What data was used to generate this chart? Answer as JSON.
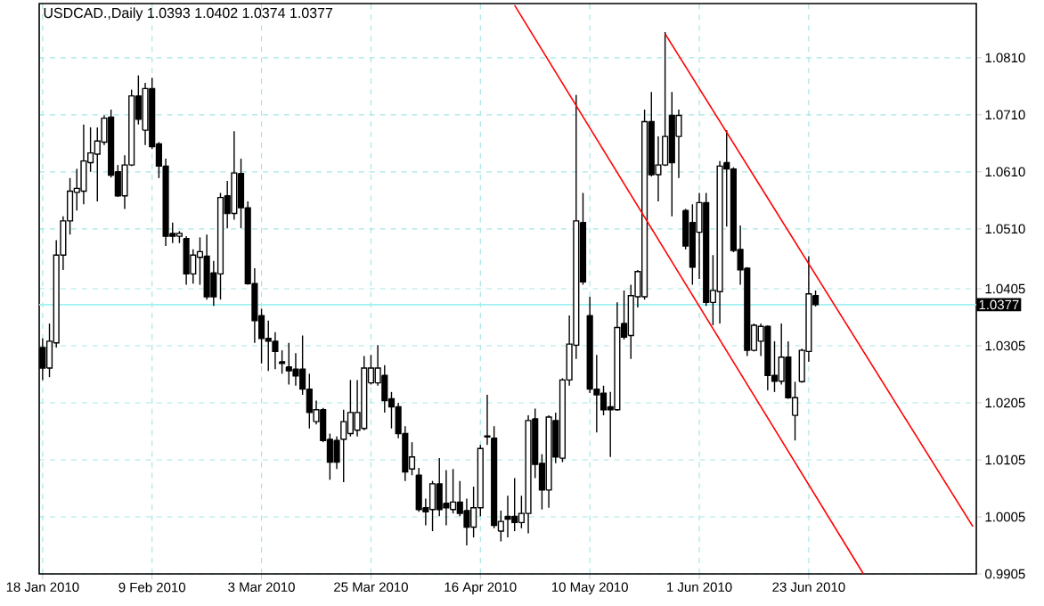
{
  "chart_data": {
    "type": "candlestick",
    "title": "USDCAD.,Daily 1.0393 1.0402 1.0374 1.0377",
    "categories": [
      "18 Jan 2010",
      null,
      null,
      null,
      null,
      null,
      null,
      null,
      null,
      null,
      null,
      null,
      null,
      null,
      null,
      null,
      "9 Feb 2010",
      null,
      null,
      null,
      null,
      null,
      null,
      null,
      null,
      null,
      null,
      null,
      null,
      null,
      null,
      null,
      "3 Mar 2010",
      null,
      null,
      null,
      null,
      null,
      null,
      null,
      null,
      null,
      null,
      null,
      null,
      null,
      null,
      null,
      "25 Mar 2010",
      null,
      null,
      null,
      null,
      null,
      null,
      null,
      null,
      null,
      null,
      null,
      null,
      null,
      null,
      null,
      "16 Apr 2010",
      null,
      null,
      null,
      null,
      null,
      null,
      null,
      null,
      null,
      null,
      null,
      null,
      null,
      null,
      null,
      "10 May 2010",
      null,
      null,
      null,
      null,
      null,
      null,
      null,
      null,
      null,
      null,
      null,
      null,
      null,
      null,
      null,
      "1 Jun 2010",
      null,
      null,
      null,
      null,
      null,
      null,
      null,
      null,
      null,
      null,
      null,
      null,
      null,
      null,
      null,
      "23 Jun 2010",
      null,
      null,
      null,
      null,
      null,
      null,
      null,
      null,
      null,
      null,
      null,
      null,
      null,
      null,
      null,
      null,
      null,
      null,
      null,
      null,
      null,
      null,
      null,
      null
    ],
    "color": "#000000",
    "ohlc": [
      [
        1.0302,
        1.0318,
        1.0245,
        1.0266
      ],
      [
        1.0266,
        1.0344,
        1.025,
        1.0313
      ],
      [
        1.031,
        1.049,
        1.0302,
        1.0464
      ],
      [
        1.0464,
        1.0532,
        1.0438,
        1.0524
      ],
      [
        1.0524,
        1.0599,
        1.05,
        1.0576
      ],
      [
        1.0574,
        1.0615,
        1.0542,
        1.0581
      ],
      [
        1.0576,
        1.0693,
        1.0553,
        1.0629
      ],
      [
        1.0626,
        1.0688,
        1.061,
        1.0643
      ],
      [
        1.0641,
        1.0688,
        1.0558,
        1.0664
      ],
      [
        1.0662,
        1.0709,
        1.0657,
        1.0704
      ],
      [
        1.0706,
        1.0719,
        1.06,
        1.0604
      ],
      [
        1.061,
        1.0622,
        1.0566,
        1.0568
      ],
      [
        1.0568,
        1.0639,
        1.0545,
        1.0622
      ],
      [
        1.0622,
        1.0754,
        1.062,
        1.0743
      ],
      [
        1.0743,
        1.0779,
        1.0693,
        1.0702
      ],
      [
        1.0683,
        1.0766,
        1.0657,
        1.0756
      ],
      [
        1.0756,
        1.0775,
        1.065,
        1.0654
      ],
      [
        1.0659,
        1.0662,
        1.0599,
        1.062
      ],
      [
        1.062,
        1.0633,
        1.048,
        1.0497
      ],
      [
        1.0502,
        1.0521,
        1.0485,
        1.0497
      ],
      [
        1.0497,
        1.0506,
        1.0485,
        1.0502
      ],
      [
        1.0493,
        1.0497,
        1.0412,
        1.0431
      ],
      [
        1.0431,
        1.0474,
        1.0414,
        1.0464
      ],
      [
        1.046,
        1.0495,
        1.0412,
        1.047
      ],
      [
        1.0462,
        1.05,
        1.0386,
        1.0391
      ],
      [
        1.0433,
        1.0454,
        1.0375,
        1.0391
      ],
      [
        1.0431,
        1.0573,
        1.0386,
        1.0565
      ],
      [
        1.0568,
        1.0594,
        1.0511,
        1.0537
      ],
      [
        1.0537,
        1.0681,
        1.0526,
        1.0608
      ],
      [
        1.0607,
        1.0633,
        1.0511,
        1.0547
      ],
      [
        1.0547,
        1.0558,
        1.0412,
        1.0414
      ],
      [
        1.0414,
        1.0441,
        1.031,
        1.0349
      ],
      [
        1.0358,
        1.037,
        1.0274,
        1.0318
      ],
      [
        1.0318,
        1.0349,
        1.0261,
        1.0313
      ],
      [
        1.0313,
        1.0329,
        1.0264,
        1.0295
      ],
      [
        1.0277,
        1.0297,
        1.0256,
        1.0274
      ],
      [
        1.0268,
        1.031,
        1.0237,
        1.0261
      ],
      [
        1.0264,
        1.0292,
        1.0235,
        1.0252
      ],
      [
        1.0264,
        1.0323,
        1.0219,
        1.0229
      ],
      [
        1.0229,
        1.0256,
        1.016,
        1.0188
      ],
      [
        1.0172,
        1.0209,
        1.0167,
        1.0193
      ],
      [
        1.0193,
        1.0196,
        1.0136,
        1.0139
      ],
      [
        1.0141,
        1.0151,
        1.007,
        1.0101
      ],
      [
        1.0139,
        1.0146,
        1.0089,
        1.0101
      ],
      [
        1.0141,
        1.0193,
        1.0066,
        1.0172
      ],
      [
        1.0151,
        1.0245,
        1.0146,
        1.0188
      ],
      [
        1.0157,
        1.0245,
        1.0146,
        1.0188
      ],
      [
        1.016,
        1.0287,
        1.0157,
        1.0266
      ],
      [
        1.024,
        1.0289,
        1.0237,
        1.0266
      ],
      [
        1.024,
        1.0306,
        1.0235,
        1.0266
      ],
      [
        1.0253,
        1.0271,
        1.0188,
        1.0209
      ],
      [
        1.0212,
        1.0224,
        1.016,
        1.0198
      ],
      [
        1.0198,
        1.0205,
        1.0143,
        1.0151
      ],
      [
        1.0151,
        1.0164,
        1.0068,
        1.0084
      ],
      [
        1.0089,
        1.0136,
        1.0078,
        1.011
      ],
      [
        1.0078,
        1.0091,
        1.0014,
        1.0018
      ],
      [
        1.0021,
        1.0037,
        0.999,
        1.0014
      ],
      [
        1.0018,
        1.0068,
        0.998,
        1.0063
      ],
      [
        1.0063,
        1.0108,
        1.0006,
        1.0018
      ],
      [
        1.0029,
        1.0087,
        0.999,
        1.0021
      ],
      [
        1.0018,
        1.0089,
        1.0011,
        1.0031
      ],
      [
        1.0031,
        1.0068,
        1.0006,
        1.0011
      ],
      [
        1.0016,
        1.0037,
        0.9955,
        0.9987
      ],
      [
        0.9987,
        1.0058,
        0.9969,
        1.0021
      ],
      [
        1.0021,
        1.0131,
        1.0006,
        1.0125
      ],
      [
        1.0145,
        1.0219,
        1.0131,
        1.0147
      ],
      [
        1.0143,
        1.0164,
        0.9985,
        0.999
      ],
      [
        0.998,
        1.0016,
        0.9962,
        0.9997
      ],
      [
        1.0006,
        1.0042,
        0.9969,
        1.0001
      ],
      [
        1.0006,
        1.0073,
        0.998,
        0.9995
      ],
      [
        0.9995,
        1.0042,
        0.9985,
        1.0011
      ],
      [
        1.0011,
        1.0183,
        0.9976,
        1.0174
      ],
      [
        1.0177,
        1.0195,
        1.0073,
        1.0097
      ],
      [
        1.0099,
        1.0115,
        1.0018,
        1.0052
      ],
      [
        1.0052,
        1.0183,
        1.0021,
        1.018
      ],
      [
        1.0174,
        1.0188,
        1.0099,
        1.011
      ],
      [
        1.0108,
        1.0248,
        1.0101,
        1.0245
      ],
      [
        1.0245,
        1.0358,
        1.0235,
        1.0308
      ],
      [
        1.0306,
        1.0745,
        1.0282,
        1.0524
      ],
      [
        1.0521,
        1.0573,
        1.0412,
        1.0417
      ],
      [
        1.0358,
        1.0391,
        1.0222,
        1.0229
      ],
      [
        1.0229,
        1.0289,
        1.0153,
        1.0219
      ],
      [
        1.0222,
        1.0235,
        1.0183,
        1.0193
      ],
      [
        1.0198,
        1.0224,
        1.011,
        1.0193
      ],
      [
        1.0193,
        1.0381,
        1.0191,
        1.0337
      ],
      [
        1.0344,
        1.0402,
        1.0316,
        1.032
      ],
      [
        1.0323,
        1.0412,
        1.0282,
        1.0393
      ],
      [
        1.0391,
        1.0438,
        1.0372,
        1.0435
      ],
      [
        1.0391,
        1.0719,
        1.0386,
        1.0698
      ],
      [
        1.0698,
        1.075,
        1.0602,
        1.0605
      ],
      [
        1.0605,
        1.0672,
        1.0558,
        1.0622
      ],
      [
        1.0622,
        1.0855,
        1.062,
        1.0672
      ],
      [
        1.0709,
        1.075,
        1.0532,
        1.0626
      ],
      [
        1.0672,
        1.0719,
        1.0599,
        1.0709
      ],
      [
        1.0542,
        1.0545,
        1.0474,
        1.048
      ],
      [
        1.0521,
        1.0553,
        1.0412,
        1.0443
      ],
      [
        1.0504,
        1.0573,
        1.0422,
        1.0556
      ],
      [
        1.0556,
        1.0573,
        1.0375,
        1.0381
      ],
      [
        1.0381,
        1.0464,
        1.0341,
        1.0402
      ],
      [
        1.04,
        1.0629,
        1.0344,
        1.062
      ],
      [
        1.0626,
        1.0683,
        1.0514,
        1.0615
      ],
      [
        1.0615,
        1.0618,
        1.0469,
        1.0472
      ],
      [
        1.0474,
        1.0516,
        1.0412,
        1.0438
      ],
      [
        1.0441,
        1.0443,
        1.0287,
        1.0297
      ],
      [
        1.0297,
        1.0344,
        1.0295,
        1.0341
      ],
      [
        1.0313,
        1.0344,
        1.0287,
        1.0339
      ],
      [
        1.0339,
        1.0341,
        1.0227,
        1.0253
      ],
      [
        1.0253,
        1.0313,
        1.0224,
        1.0243
      ],
      [
        1.0243,
        1.0344,
        1.0237,
        1.0285
      ],
      [
        1.0285,
        1.0313,
        1.0212,
        1.0214
      ],
      [
        1.0183,
        1.0242,
        1.0139,
        1.0214
      ],
      [
        1.0242,
        1.03,
        1.024,
        1.0297
      ],
      [
        1.0295,
        1.0462,
        1.0277,
        1.0396
      ],
      [
        1.0393,
        1.0402,
        1.0374,
        1.0377
      ],
      null,
      null,
      null,
      null,
      null,
      null,
      null,
      null,
      null,
      null,
      null,
      null,
      null,
      null,
      null,
      null,
      null,
      null,
      null,
      null,
      null,
      null,
      null
    ],
    "series": [
      {
        "type": "line",
        "color": "#ff0000",
        "values": [
          null,
          null,
          null,
          null,
          null,
          null,
          null,
          null,
          null,
          null,
          null,
          null,
          null,
          null,
          null,
          null,
          null,
          null,
          null,
          null,
          null,
          null,
          null,
          null,
          null,
          null,
          null,
          null,
          null,
          null,
          null,
          null,
          null,
          null,
          null,
          null,
          null,
          null,
          null,
          null,
          null,
          null,
          null,
          null,
          null,
          null,
          null,
          null,
          null,
          null,
          null,
          null,
          null,
          null,
          null,
          null,
          null,
          null,
          null,
          null,
          null,
          null,
          null,
          null,
          null,
          null,
          null,
          null,
          null,
          null,
          null,
          null,
          null,
          null,
          null,
          null,
          null,
          null,
          null,
          null,
          null,
          null,
          null,
          null,
          null,
          null,
          null,
          null,
          null,
          null,
          null,
          1.0852,
          null,
          null,
          null,
          null,
          null,
          null,
          null,
          null,
          null,
          null,
          null,
          null,
          null,
          null,
          null,
          null,
          null,
          null,
          null,
          null,
          null,
          null,
          null,
          null,
          null,
          null,
          null,
          null,
          null,
          null,
          null,
          null,
          null,
          null,
          null,
          null,
          null,
          null,
          null,
          null,
          null,
          null,
          null,
          null,
          0.9988
        ]
      },
      {
        "type": "line",
        "color": "#ff0000",
        "values": [
          null,
          null,
          null,
          null,
          null,
          null,
          null,
          null,
          null,
          null,
          null,
          null,
          null,
          null,
          null,
          null,
          null,
          null,
          null,
          null,
          null,
          null,
          null,
          null,
          null,
          null,
          null,
          null,
          null,
          null,
          null,
          null,
          null,
          null,
          null,
          null,
          null,
          null,
          null,
          null,
          null,
          null,
          null,
          null,
          null,
          null,
          null,
          null,
          null,
          null,
          null,
          null,
          null,
          null,
          null,
          null,
          null,
          null,
          null,
          null,
          null,
          null,
          null,
          null,
          null,
          null,
          null,
          null,
          null,
          1.0902,
          null,
          null,
          null,
          null,
          null,
          null,
          null,
          null,
          null,
          null,
          null,
          null,
          null,
          null,
          null,
          null,
          null,
          null,
          null,
          null,
          null,
          null,
          null,
          null,
          null,
          null,
          null,
          null,
          null,
          null,
          null,
          null,
          null,
          null,
          null,
          null,
          null,
          null,
          null,
          null,
          null,
          null,
          null,
          null,
          null,
          null,
          null,
          null,
          null,
          null,
          0.9905,
          null,
          null,
          null,
          null,
          null,
          null,
          null,
          null,
          null,
          null,
          null,
          null,
          null,
          null,
          null,
          null
        ]
      }
    ],
    "ylim": [
      0.9905,
      1.0905
    ],
    "yticks": [
      0.9905,
      1.0005,
      1.0105,
      1.0205,
      1.0305,
      1.0405,
      {
        "value": 1.051,
        "label": "1.0510"
      },
      {
        "value": 1.061,
        "label": "1.0610"
      },
      {
        "value": 1.071,
        "label": "1.0710"
      },
      {
        "value": 1.081,
        "label": "1.0810"
      }
    ],
    "ref_lines": [
      {
        "axis": "y",
        "value": 1.0377,
        "label": "1.0377",
        "color": "#a0f0f0"
      }
    ],
    "grid": true
  }
}
